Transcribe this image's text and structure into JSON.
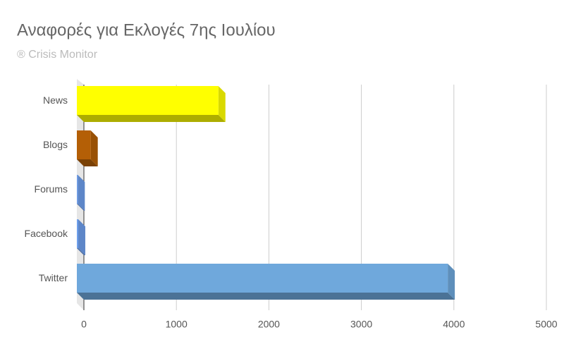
{
  "chart_data": {
    "type": "bar3d-horizontal",
    "title": "Αναφορές για Εκλογές 7ης Ιουλίου",
    "subtitle": "® Crisis Monitor",
    "categories": [
      "News",
      "Blogs",
      "Forums",
      "Facebook",
      "Twitter"
    ],
    "values": [
      1530,
      150,
      10,
      15,
      4010
    ],
    "colors": [
      "#ffff00",
      "#b45f06",
      "#6d9eeb",
      "#6d9eeb",
      "#6fa8dc"
    ],
    "xlim": [
      0,
      5000
    ],
    "xticks": [
      0,
      1000,
      2000,
      3000,
      4000,
      5000
    ],
    "grid": true
  }
}
